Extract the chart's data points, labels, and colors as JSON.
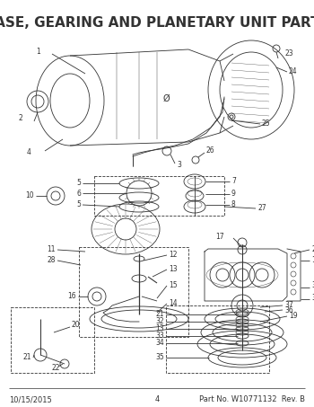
{
  "title": "CASE, GEARING AND PLANETARY UNIT PARTS",
  "title_fontsize": 11,
  "title_fontweight": "bold",
  "footer_left": "10/15/2015",
  "footer_center": "4",
  "footer_right": "Part No. W10771132  Rev. B",
  "footer_fontsize": 6,
  "bg_color": "#ffffff",
  "lc": "#333333",
  "fig_width": 3.5,
  "fig_height": 4.53,
  "dpi": 100
}
